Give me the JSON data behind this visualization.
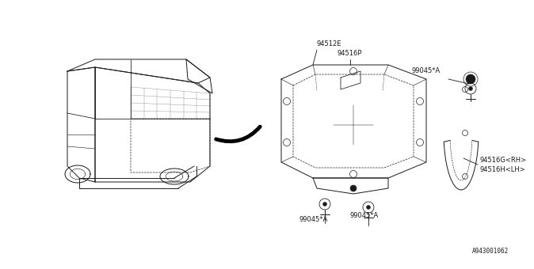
{
  "bg_color": "#ffffff",
  "line_color": "#1a1a1a",
  "diagram_id": "A943001062",
  "font_size": 6.0,
  "line_width": 0.7,
  "label_94512E": "94512E",
  "label_94516P": "94516P",
  "label_99045A": "99045*A",
  "label_94516G": "94516G<RH>",
  "label_94516H": "94516H<LH>"
}
